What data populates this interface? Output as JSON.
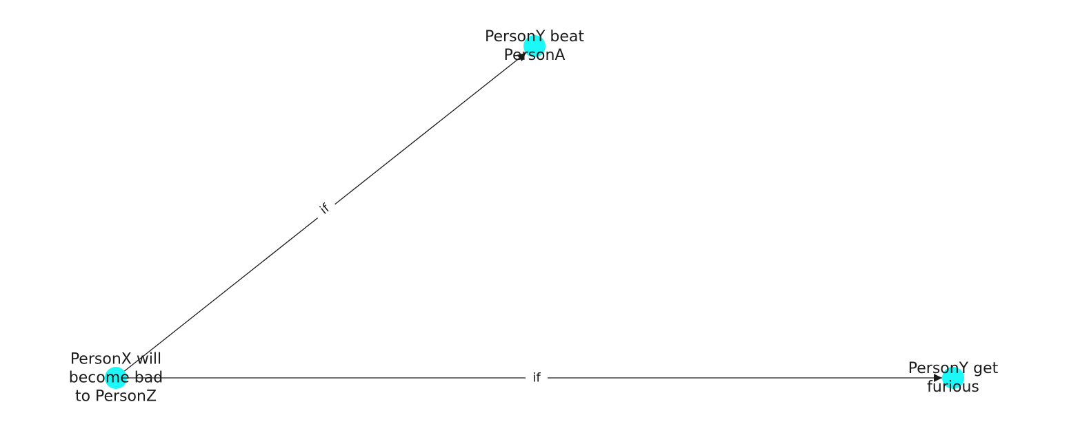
{
  "diagram": {
    "node_color": "#1cf8f8",
    "edge_color": "#1a1a1a",
    "nodes": [
      {
        "id": "n_x",
        "lines": [
          "PersonX will",
          "become bad",
          "to PersonZ"
        ]
      },
      {
        "id": "n_a",
        "lines": [
          "PersonY beat",
          "PersonA"
        ]
      },
      {
        "id": "n_f",
        "lines": [
          "PersonY get",
          "furious"
        ]
      }
    ],
    "edges": [
      {
        "from": "n_x",
        "to": "n_a",
        "label": "if"
      },
      {
        "from": "n_x",
        "to": "n_f",
        "label": "if"
      }
    ]
  }
}
